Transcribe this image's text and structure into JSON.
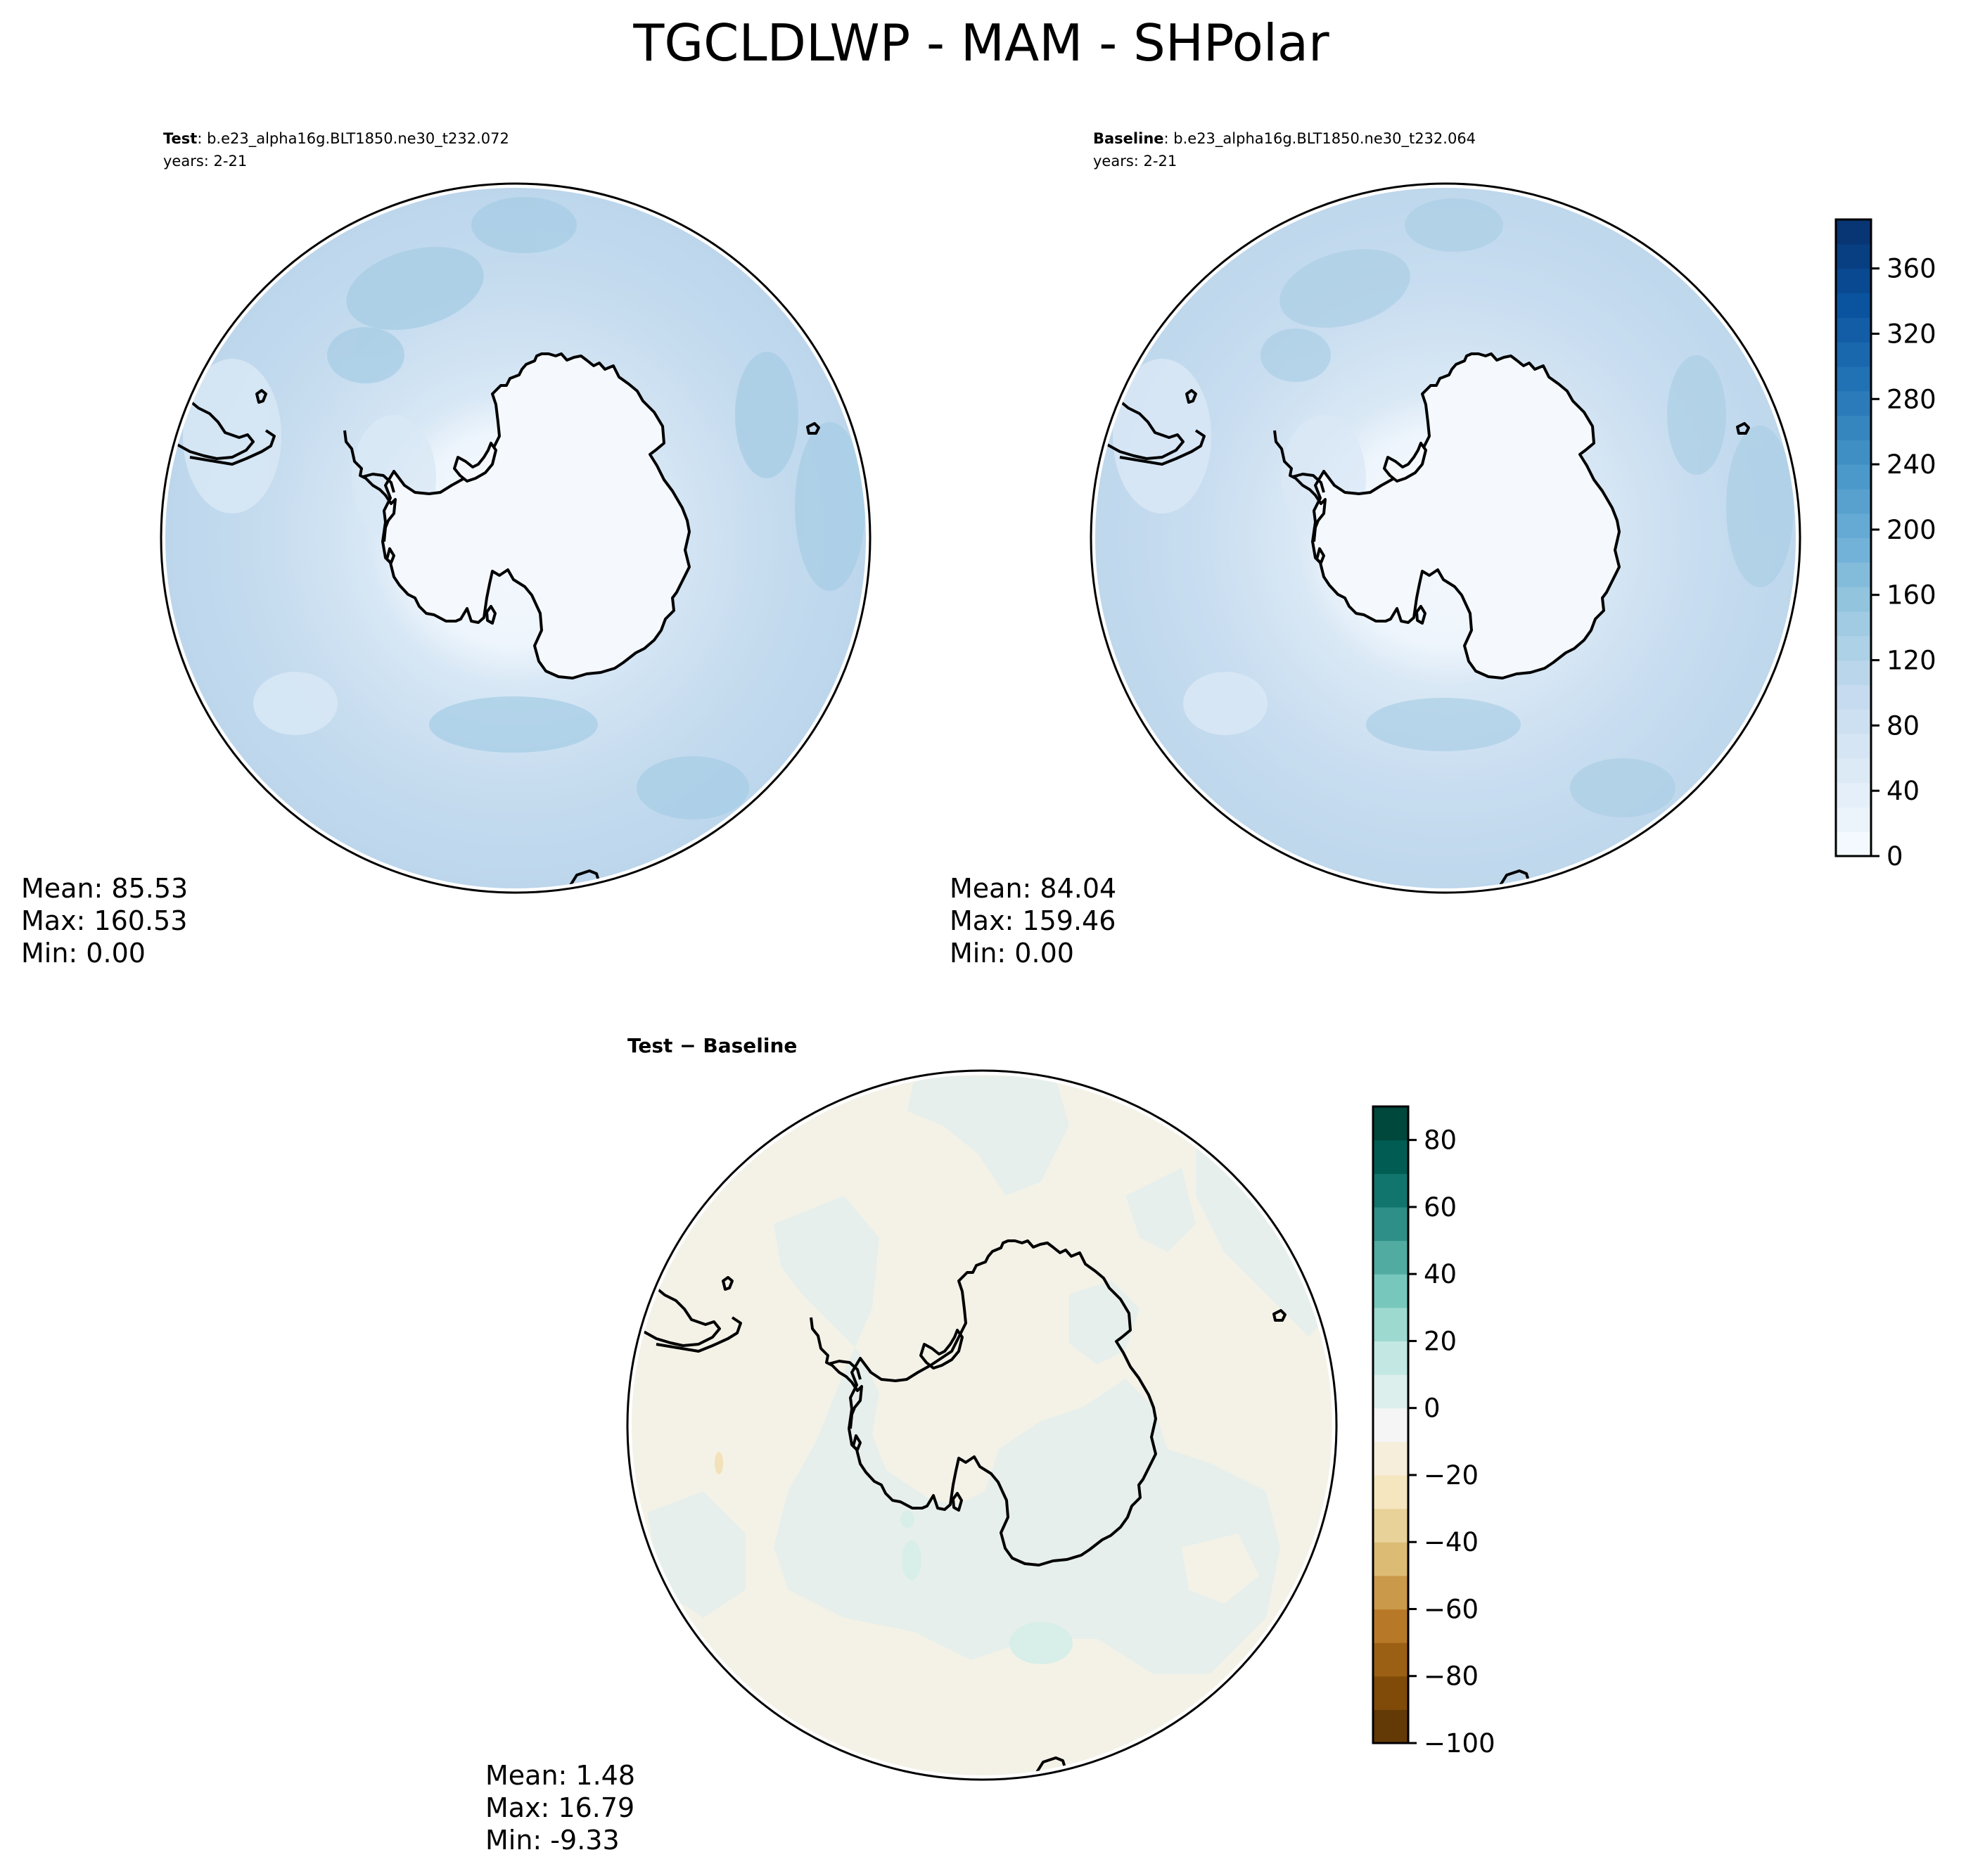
{
  "figure": {
    "title": "TGCLDLWP - MAM - SHPolar"
  },
  "chart_data": [
    {
      "type": "heatmap",
      "projection": "south-polar-stereographic",
      "panel": "test",
      "title_bold": "Test",
      "title_rest": ": b.e23_alpha16g.BLT1850.ne30_t232.072",
      "subtitle": "years: 2-21",
      "stats": {
        "mean": "Mean: 85.53",
        "max": "Max: 160.53",
        "min": "Min:  0.00"
      },
      "colormap": "Blues",
      "colorbar": "shared"
    },
    {
      "type": "heatmap",
      "projection": "south-polar-stereographic",
      "panel": "baseline",
      "title_bold": "Baseline",
      "title_rest": ": b.e23_alpha16g.BLT1850.ne30_t232.064",
      "subtitle": "years: 2-21",
      "stats": {
        "mean": "Mean: 84.04",
        "max": "Max: 159.46",
        "min": "Min:  0.00"
      },
      "colormap": "Blues",
      "colorbar": {
        "range": [
          0,
          390
        ],
        "ticks": [
          0,
          40,
          80,
          120,
          160,
          200,
          240,
          280,
          320,
          360
        ],
        "tick_labels": [
          "0",
          "40",
          "80",
          "120",
          "160",
          "200",
          "240",
          "280",
          "320",
          "360"
        ],
        "levels": 26
      }
    },
    {
      "type": "heatmap",
      "projection": "south-polar-stereographic",
      "panel": "difference",
      "title": "Test − Baseline",
      "stats": {
        "mean": "Mean:  1.48",
        "max": "Max: 16.79",
        "min": "Min: -9.33"
      },
      "colormap": "BrBG",
      "colorbar": {
        "range": [
          -100,
          90
        ],
        "ticks": [
          -100,
          -80,
          -60,
          -40,
          -20,
          0,
          20,
          40,
          60,
          80
        ],
        "tick_labels": [
          "−100",
          "−80",
          "−60",
          "−40",
          "−20",
          "0",
          "20",
          "40",
          "60",
          "80"
        ],
        "levels": 19
      }
    }
  ],
  "colors": {
    "blues_cmap": [
      "#f7fbff",
      "#deebf7",
      "#c6dbef",
      "#9ecae1",
      "#6baed6",
      "#4292c6",
      "#2171b5",
      "#08519c",
      "#08306b"
    ],
    "brbg_cmap": [
      "#543005",
      "#8c510a",
      "#bf812d",
      "#dfc27d",
      "#f6e8c3",
      "#f5f5f5",
      "#c7eae5",
      "#80cdc1",
      "#35978f",
      "#01665e",
      "#003c30"
    ],
    "map_ocean_test": "#c4dbee",
    "map_ocean_baseline": "#c6dcef",
    "map_diff_base": "#f4f2e7"
  }
}
